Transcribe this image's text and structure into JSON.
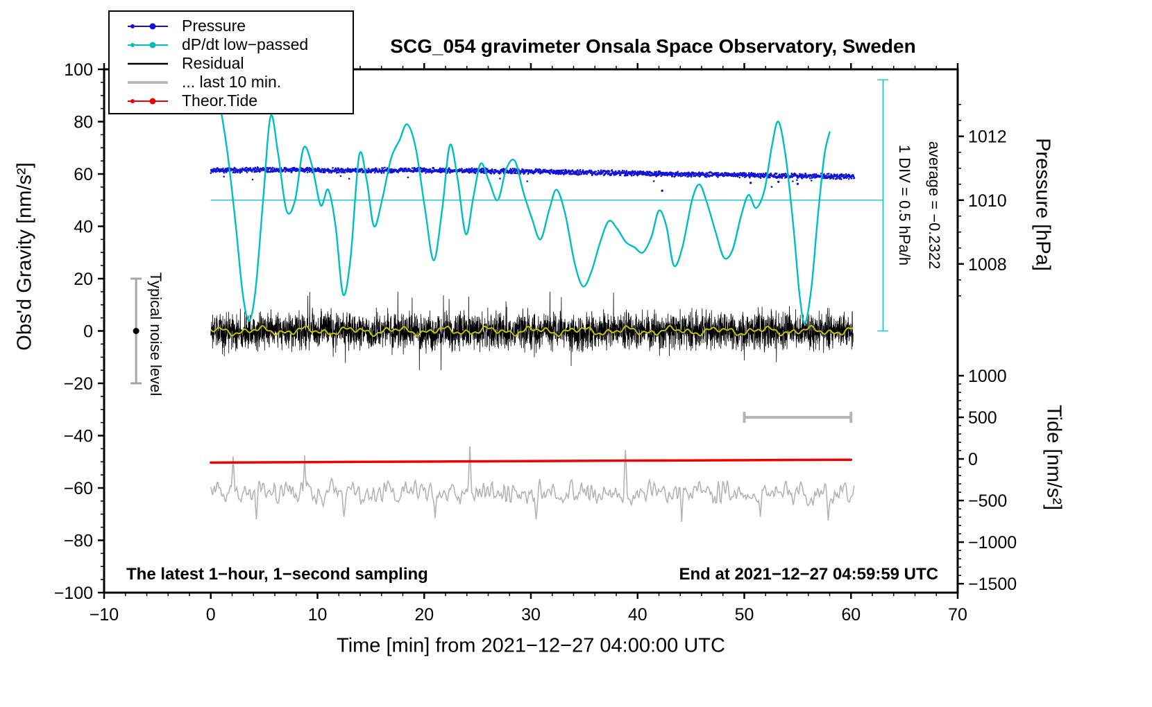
{
  "title": "SCG_054 gravimeter Onsala Space Observatory, Sweden",
  "labels": {
    "x_axis": "Time [min] from 2021−12−27 04:00:00 UTC",
    "y_left": "Obs'd Gravity [nm/s²]",
    "y_pressure": "Pressure [hPa]",
    "y_tide": "Tide [nm/s²]",
    "noise": "Typical noise level",
    "div": "1 DIV = 0.5 hPa/h",
    "average": "average = −0.2322",
    "sampling": "The latest 1−hour, 1−second sampling",
    "end": "End at 2021−12−27 04:59:59 UTC"
  },
  "legend": {
    "items": [
      {
        "label": "Pressure",
        "color": "#1111d8",
        "style": "dotline"
      },
      {
        "label": "dP/dt low−passed",
        "color": "#00bebe",
        "style": "dotline"
      },
      {
        "label": "Residual",
        "color": "#000000",
        "style": "line",
        "weight": 2.5
      },
      {
        "label": "... last 10 min.",
        "color": "#b4b4b4",
        "style": "line",
        "weight": 3.5
      },
      {
        "label": "Theor.Tide",
        "color": "#ee0000",
        "style": "dotline"
      }
    ]
  },
  "chart_data": {
    "type": "line",
    "title": "SCG_054 gravimeter Onsala Space Observatory, Sweden",
    "x_axis": {
      "label": "Time [min] from 2021−12−27 04:00:00 UTC",
      "range": [
        -10,
        70
      ],
      "minor_tick_step": 2,
      "ticks": [
        {
          "v": -10,
          "label": "−10"
        },
        {
          "v": 0,
          "label": "0"
        },
        {
          "v": 10,
          "label": "10"
        },
        {
          "v": 20,
          "label": "20"
        },
        {
          "v": 30,
          "label": "30"
        },
        {
          "v": 40,
          "label": "40"
        },
        {
          "v": 50,
          "label": "50"
        },
        {
          "v": 60,
          "label": "60"
        },
        {
          "v": 70,
          "label": "70"
        }
      ]
    },
    "y_axis_left": {
      "label": "Obs'd Gravity [nm/s²]",
      "range": [
        -100,
        100
      ],
      "minor_tick_step": 5,
      "ticks": [
        {
          "v": -100,
          "label": "−100"
        },
        {
          "v": -80,
          "label": "−80"
        },
        {
          "v": -60,
          "label": "−60"
        },
        {
          "v": -40,
          "label": "−40"
        },
        {
          "v": -20,
          "label": "−20"
        },
        {
          "v": 0,
          "label": "0"
        },
        {
          "v": 20,
          "label": "20"
        },
        {
          "v": 40,
          "label": "40"
        },
        {
          "v": 60,
          "label": "60"
        },
        {
          "v": 80,
          "label": "80"
        },
        {
          "v": 100,
          "label": "100"
        }
      ]
    },
    "y_axis_pressure": {
      "label": "Pressure [hPa]",
      "anchor": {
        "pressure": 1010,
        "gravity": 50
      },
      "gravity_units_per_hPa": 12.19,
      "minor_tick_step": 0.5,
      "minor_range": [
        1007,
        1013
      ],
      "ticks": [
        {
          "v": 1008,
          "label": "1008"
        },
        {
          "v": 1010,
          "label": "1010"
        },
        {
          "v": 1012,
          "label": "1012"
        }
      ]
    },
    "y_axis_tide": {
      "label": "Tide [nm/s²]",
      "anchor": {
        "tide": 0,
        "gravity": -48.9
      },
      "gravity_units_per_tide_unit": 0.0318,
      "minor_tick_step": 100,
      "minor_range": [
        -1500,
        1000
      ],
      "ticks": [
        {
          "v": 1000,
          "label": "1000"
        },
        {
          "v": 500,
          "label": "500"
        },
        {
          "v": 0,
          "label": "0"
        },
        {
          "v": -500,
          "label": "−500"
        },
        {
          "v": -1000,
          "label": "−1000"
        },
        {
          "v": -1500,
          "label": "−1500"
        }
      ]
    },
    "reference_line": {
      "axis": "pressure",
      "pressure_hPa": 1010,
      "t_extent": [
        0,
        63
      ]
    },
    "series": [
      {
        "name": "Pressure",
        "color": "#1111d8",
        "style": "scatter",
        "axis": "pressure",
        "t_range": [
          0,
          60.3
        ],
        "points": 2200,
        "noise_sigma_hPa": 0.032,
        "profile_t_min": [
          0,
          5,
          10,
          15,
          20,
          25,
          30,
          35,
          40,
          45,
          50,
          55,
          60
        ],
        "profile_hPa": [
          1010.93,
          1010.95,
          1010.94,
          1010.93,
          1010.94,
          1010.92,
          1010.9,
          1010.87,
          1010.84,
          1010.81,
          1010.79,
          1010.76,
          1010.74
        ],
        "outliers_t_gravity": [
          [
            42.3,
            53.6
          ],
          [
            50.6,
            56.6
          ],
          [
            53.2,
            57.0
          ],
          [
            55.0,
            56.2
          ]
        ]
      },
      {
        "name": "dP/dt low−passed",
        "color": "#00bebe",
        "style": "smooth-line",
        "axis": "gravity",
        "line_width": 2.4,
        "scale_note": "1 DIV = 0.5 hPa/h",
        "average_hPa_per_h": -0.2322,
        "control_points_t_gravity": [
          [
            0,
            96
          ],
          [
            0.7,
            89
          ],
          [
            1.5,
            70
          ],
          [
            2.3,
            42
          ],
          [
            3.0,
            14
          ],
          [
            3.6,
            4
          ],
          [
            4.2,
            16
          ],
          [
            4.9,
            50
          ],
          [
            5.6,
            82
          ],
          [
            6.3,
            68
          ],
          [
            7.1,
            46
          ],
          [
            7.9,
            50
          ],
          [
            8.7,
            70
          ],
          [
            9.5,
            63
          ],
          [
            10.3,
            48
          ],
          [
            11.0,
            54
          ],
          [
            11.7,
            40
          ],
          [
            12.4,
            14
          ],
          [
            13.1,
            28
          ],
          [
            13.9,
            67
          ],
          [
            14.6,
            58
          ],
          [
            15.3,
            40
          ],
          [
            16.1,
            51
          ],
          [
            16.9,
            66
          ],
          [
            17.7,
            73
          ],
          [
            18.4,
            79
          ],
          [
            19.2,
            70
          ],
          [
            20.1,
            46
          ],
          [
            20.9,
            27
          ],
          [
            21.7,
            47
          ],
          [
            22.4,
            71
          ],
          [
            23.1,
            59
          ],
          [
            23.9,
            37
          ],
          [
            24.6,
            51
          ],
          [
            25.3,
            64
          ],
          [
            26.1,
            57
          ],
          [
            26.9,
            50
          ],
          [
            27.7,
            62
          ],
          [
            28.5,
            65
          ],
          [
            29.3,
            53
          ],
          [
            30.1,
            43
          ],
          [
            30.9,
            35
          ],
          [
            31.7,
            46
          ],
          [
            32.4,
            54
          ],
          [
            33.2,
            45
          ],
          [
            34.1,
            26
          ],
          [
            34.9,
            17
          ],
          [
            35.7,
            23
          ],
          [
            36.5,
            34
          ],
          [
            37.3,
            42
          ],
          [
            38.1,
            39
          ],
          [
            38.9,
            34
          ],
          [
            39.7,
            32
          ],
          [
            40.5,
            30
          ],
          [
            41.3,
            36
          ],
          [
            42.0,
            46
          ],
          [
            42.7,
            40
          ],
          [
            43.4,
            25
          ],
          [
            44.2,
            32
          ],
          [
            45.1,
            50
          ],
          [
            45.8,
            56
          ],
          [
            46.5,
            49
          ],
          [
            47.3,
            38
          ],
          [
            48.1,
            28
          ],
          [
            48.9,
            31
          ],
          [
            49.7,
            44
          ],
          [
            50.4,
            52
          ],
          [
            51.1,
            47
          ],
          [
            51.9,
            54
          ],
          [
            52.6,
            71
          ],
          [
            53.2,
            80
          ],
          [
            53.9,
            66
          ],
          [
            54.6,
            40
          ],
          [
            55.2,
            13
          ],
          [
            55.7,
            3
          ],
          [
            56.3,
            17
          ],
          [
            56.9,
            44
          ],
          [
            57.5,
            67
          ],
          [
            58.0,
            76
          ]
        ]
      },
      {
        "name": "Residual",
        "color": "#000000",
        "style": "noise-line",
        "axis": "gravity",
        "center": 0,
        "sigma": 3.4,
        "spike_rate": 0.012,
        "clip": 15,
        "points": 4000,
        "t_range": [
          0,
          60.2
        ],
        "line_width": 0.8
      },
      {
        "name": "Residual smoothed",
        "color": "#c3c300",
        "style": "wander-line",
        "axis": "gravity",
        "center": 0,
        "components": [
          {
            "amp": 0.9,
            "period": 4.3,
            "phase": 1.2
          },
          {
            "amp": 0.7,
            "period": 1.9,
            "phase": 4.1
          },
          {
            "amp": 0.5,
            "period": 0.83,
            "phase": 2.6
          }
        ],
        "t_range": [
          0,
          60.2
        ],
        "line_width": 2
      },
      {
        "name": "... last 10 min.",
        "color": "#b4b4b4",
        "style": "rough-line",
        "axis": "gravity",
        "center": -62,
        "amplitude": 6,
        "points": 720,
        "t_range": [
          0,
          60.3
        ],
        "line_width": 1.6,
        "up_spikes_t_gravity": [
          [
            2.1,
            -48
          ],
          [
            8.8,
            -47.5
          ],
          [
            24.3,
            -44
          ],
          [
            38.9,
            -45.5
          ]
        ],
        "down_spikes_t_gravity": [
          [
            4.3,
            -72
          ],
          [
            12.5,
            -71
          ],
          [
            21.0,
            -71.5
          ],
          [
            30.5,
            -72
          ],
          [
            44.1,
            -73
          ],
          [
            51.5,
            -71
          ],
          [
            57.9,
            -72.5
          ]
        ]
      },
      {
        "name": "Theor.Tide",
        "color": "#ee0000",
        "style": "line",
        "axis": "tide",
        "line_width": 3.5,
        "t": [
          0,
          15,
          30,
          45,
          60
        ],
        "tide": [
          -44,
          -35,
          -26,
          -17.5,
          -9
        ]
      }
    ],
    "extras": {
      "noise_errorbar": {
        "t": -7,
        "gravity_range": [
          -20,
          20
        ],
        "dot_gravity": 0
      },
      "pressure_div_bar": {
        "t": 63,
        "gravity_range": [
          0,
          96
        ]
      },
      "scale_bar": {
        "t_range": [
          50,
          60
        ],
        "gravity": -33
      }
    }
  }
}
